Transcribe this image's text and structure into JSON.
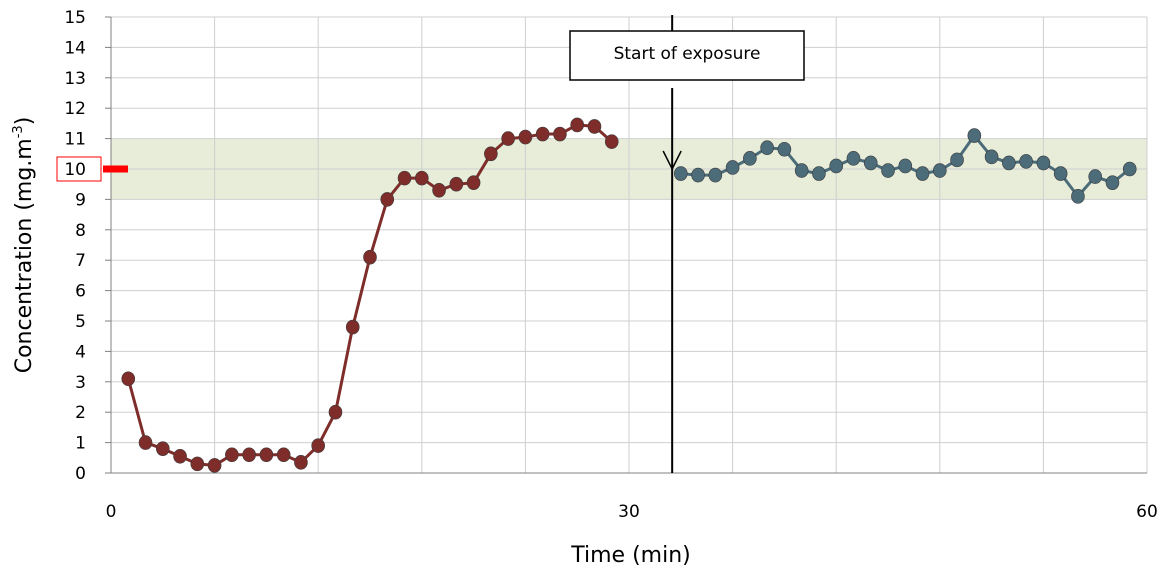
{
  "chart_data": {
    "type": "line",
    "title": "",
    "xlabel": "Time (min)",
    "ylabel": "Concentration (mg.m",
    "ylabel_superscript": "-3",
    "ylabel_close": ")",
    "xlim": [
      0,
      60
    ],
    "ylim": [
      0,
      15
    ],
    "x_ticks": [
      0,
      30,
      60
    ],
    "y_ticks": [
      0,
      1,
      2,
      3,
      4,
      5,
      6,
      7,
      8,
      9,
      10,
      11,
      12,
      13,
      14,
      15
    ],
    "grid": true,
    "target_band": {
      "from": 9,
      "to": 11,
      "color": "#e7edd9"
    },
    "target_marker": {
      "value": 10,
      "color": "#ff0000"
    },
    "annotation": {
      "text": "Start of exposure",
      "x": 32.5,
      "y": 10
    },
    "series": [
      {
        "color": "#7f2d2a",
        "points": [
          [
            1,
            3.1
          ],
          [
            2,
            1.0
          ],
          [
            3,
            0.8
          ],
          [
            4,
            0.55
          ],
          [
            5,
            0.3
          ],
          [
            6,
            0.25
          ],
          [
            7,
            0.6
          ],
          [
            8,
            0.6
          ],
          [
            9,
            0.6
          ],
          [
            10,
            0.6
          ],
          [
            11,
            0.35
          ],
          [
            12,
            0.9
          ],
          [
            13,
            2.0
          ],
          [
            14,
            4.8
          ],
          [
            15,
            7.1
          ],
          [
            16,
            9.0
          ],
          [
            17,
            9.7
          ],
          [
            18,
            9.7
          ],
          [
            19,
            9.3
          ],
          [
            20,
            9.5
          ],
          [
            21,
            9.55
          ],
          [
            22,
            10.5
          ],
          [
            23,
            11.0
          ],
          [
            24,
            11.05
          ],
          [
            25,
            11.15
          ],
          [
            26,
            11.15
          ],
          [
            27,
            11.45
          ],
          [
            28,
            11.4
          ],
          [
            29,
            10.9
          ]
        ]
      },
      {
        "color": "#4c6c7a",
        "points": [
          [
            33,
            9.85
          ],
          [
            34,
            9.8
          ],
          [
            35,
            9.8
          ],
          [
            36,
            10.05
          ],
          [
            37,
            10.35
          ],
          [
            38,
            10.7
          ],
          [
            39,
            10.65
          ],
          [
            40,
            9.95
          ],
          [
            41,
            9.85
          ],
          [
            42,
            10.1
          ],
          [
            43,
            10.35
          ],
          [
            44,
            10.2
          ],
          [
            45,
            9.95
          ],
          [
            46,
            10.1
          ],
          [
            47,
            9.85
          ],
          [
            48,
            9.95
          ],
          [
            49,
            10.3
          ],
          [
            50,
            11.1
          ],
          [
            51,
            10.4
          ],
          [
            52,
            10.2
          ],
          [
            53,
            10.25
          ],
          [
            54,
            10.2
          ],
          [
            55,
            9.85
          ],
          [
            56,
            9.1
          ],
          [
            57,
            9.75
          ],
          [
            58,
            9.55
          ],
          [
            59,
            10.0
          ]
        ]
      }
    ]
  }
}
